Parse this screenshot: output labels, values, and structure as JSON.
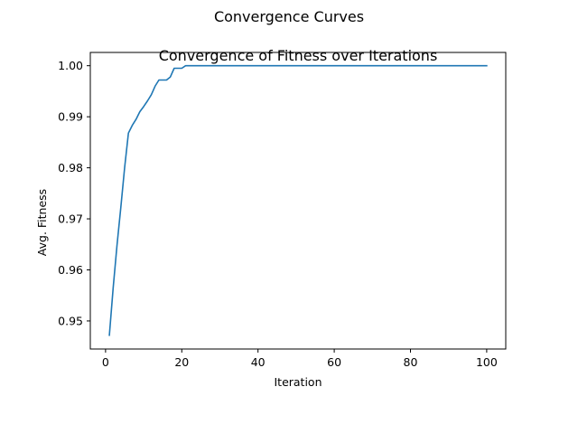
{
  "figure": {
    "suptitle": "Convergence Curves"
  },
  "chart_data": {
    "type": "line",
    "title": "Convergence of Fitness over Iterations",
    "xlabel": "Iteration",
    "ylabel": "Avg. Fitness",
    "xlim": [
      -4,
      105
    ],
    "ylim": [
      0.9445,
      1.0026
    ],
    "xticks": [
      0,
      20,
      40,
      60,
      80,
      100
    ],
    "yticks": [
      0.95,
      0.96,
      0.97,
      0.98,
      0.99,
      1.0
    ],
    "xtick_labels": [
      "0",
      "20",
      "40",
      "60",
      "80",
      "100"
    ],
    "ytick_labels": [
      "0.95",
      "0.96",
      "0.97",
      "0.98",
      "0.99",
      "1.00"
    ],
    "grid": false,
    "line_color": "#1f77b4",
    "series": [
      {
        "x": [
          1,
          2,
          3,
          4,
          5,
          6,
          7,
          8,
          9,
          10,
          11,
          12,
          13,
          14,
          15,
          16,
          17,
          18,
          19,
          20,
          21,
          22,
          23,
          24,
          25,
          30,
          40,
          50,
          60,
          70,
          80,
          90,
          100
        ],
        "values": [
          0.9472,
          0.9565,
          0.9648,
          0.9722,
          0.98,
          0.9868,
          0.9883,
          0.9895,
          0.991,
          0.992,
          0.9931,
          0.9943,
          0.996,
          0.9972,
          0.9972,
          0.9972,
          0.9978,
          0.9995,
          0.9995,
          0.9995,
          1.0,
          1.0,
          1.0,
          1.0,
          1.0,
          1.0,
          1.0,
          1.0,
          1.0,
          1.0,
          1.0,
          1.0,
          1.0
        ]
      }
    ]
  }
}
